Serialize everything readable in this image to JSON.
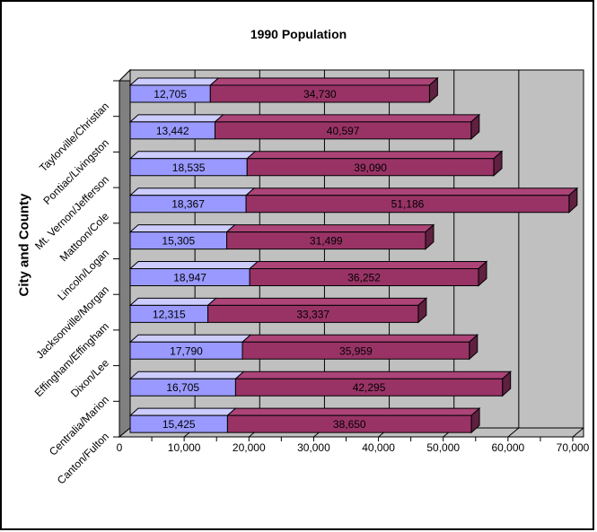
{
  "window": {
    "background": "#FFFFFF",
    "border_color": "#000000"
  },
  "chart_data": {
    "type": "bar",
    "subtype": "horizontal-stacked-3d",
    "title": "1990 Population",
    "ylabel": "City and County",
    "xlabel": "",
    "legend": "none",
    "plot_background": "#C0C0C0",
    "side_wall_color": "#808080",
    "gridlines": "major-vertical-black",
    "xlim": [
      0,
      70000
    ],
    "x_major_tick_step": 10000,
    "x_minor_tick_step": 5000,
    "x_tick_labels": [
      "0",
      "10,000",
      "20,000",
      "30,000",
      "40,000",
      "50,000",
      "60,000",
      "70,000"
    ],
    "categories_top_to_bottom": [
      "Taylorville/Christian",
      "Pontiac/Livingston",
      "Mt. Vernon/Jefferson",
      "Mattoon/Cole",
      "Lincoln/Logan",
      "Jacksonville/Morgan",
      "Effingham/Effingham",
      "Dixon/Lee",
      "Centralia/Marion",
      "Canton/Fulton"
    ],
    "series": [
      {
        "name": "city",
        "color": "#9999FF",
        "top_face_color": "#CCCCFF",
        "values": [
          12705,
          13442,
          18535,
          18367,
          15305,
          18947,
          12315,
          17790,
          16705,
          15425
        ]
      },
      {
        "name": "county",
        "color": "#993366",
        "top_face_color": "#AC4478",
        "side_face_color": "#602040",
        "values": [
          34730,
          40597,
          39090,
          51186,
          31499,
          36252,
          33337,
          35959,
          42295,
          38650
        ]
      }
    ],
    "value_label_style": "black, comma-separated, centered in each segment"
  }
}
